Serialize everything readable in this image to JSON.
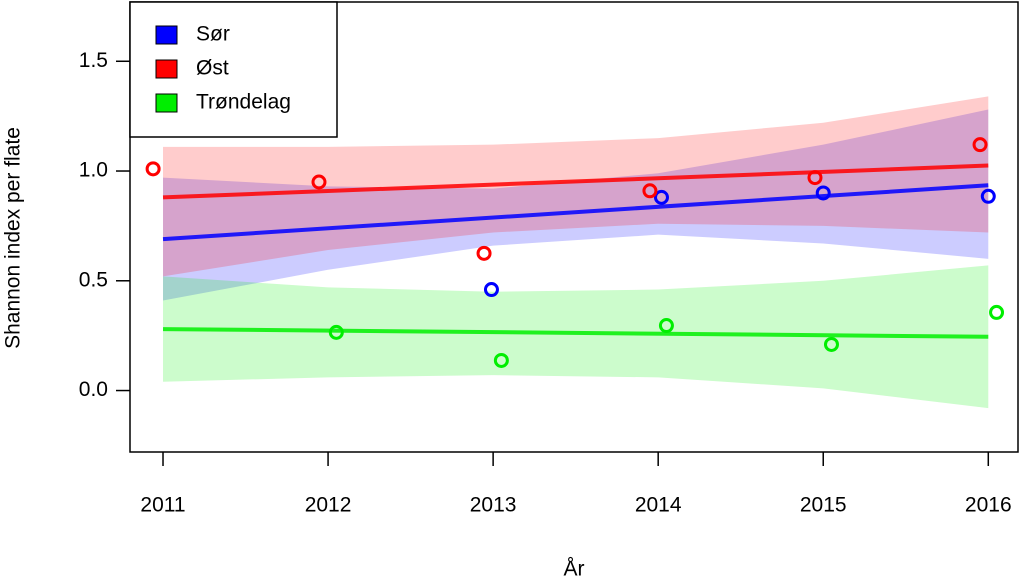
{
  "chart_data": {
    "type": "scatter",
    "x_label": "År",
    "y_label": "Shannon index per flate",
    "xlim": [
      2010.8,
      2016.18
    ],
    "ylim": [
      -0.28,
      1.77
    ],
    "xticks": [
      2011,
      2012,
      2013,
      2014,
      2015,
      2016
    ],
    "yticks": [
      {
        "value": 0,
        "label": "0.0"
      },
      0.5,
      {
        "value": 1,
        "label": "1.0"
      },
      1.5
    ],
    "legend_position": "top-left",
    "series": [
      {
        "name": "Sør",
        "color": "#0000ff",
        "x": [
          2012.99,
          2014.02,
          2015.0,
          2016.0
        ],
        "values": [
          0.46,
          0.88,
          0.9,
          0.885
        ],
        "fit_x": [
          2011,
          2016
        ],
        "fit_values": [
          0.69,
          0.935
        ],
        "band_x": [
          2011,
          2012,
          2013,
          2014,
          2015,
          2016
        ],
        "band_lower": [
          0.41,
          0.55,
          0.66,
          0.71,
          0.67,
          0.6
        ],
        "band_upper": [
          0.97,
          0.93,
          0.92,
          0.99,
          1.12,
          1.28
        ]
      },
      {
        "name": "Øst",
        "color": "#ff0000",
        "x": [
          2010.94,
          2011.945,
          2012.945,
          2013.95,
          2014.95,
          2015.95
        ],
        "values": [
          1.01,
          0.95,
          0.625,
          0.91,
          0.97,
          1.12
        ],
        "fit_x": [
          2011,
          2016
        ],
        "fit_values": [
          0.88,
          1.025
        ],
        "band_x": [
          2011,
          2012,
          2013,
          2014,
          2015,
          2016
        ],
        "band_lower": [
          0.52,
          0.64,
          0.72,
          0.76,
          0.75,
          0.72
        ],
        "band_upper": [
          1.11,
          1.11,
          1.12,
          1.15,
          1.22,
          1.34
        ]
      },
      {
        "name": "Trøndelag",
        "color": "#00ee00",
        "x": [
          2012.05,
          2013.05,
          2014.05,
          2015.05,
          2016.05
        ],
        "values": [
          0.265,
          0.137,
          0.296,
          0.21,
          0.356
        ],
        "fit_x": [
          2011,
          2016
        ],
        "fit_values": [
          0.28,
          0.245
        ],
        "band_x": [
          2011,
          2012,
          2013,
          2014,
          2015,
          2016
        ],
        "band_lower": [
          0.04,
          0.06,
          0.07,
          0.06,
          0.01,
          -0.08
        ],
        "band_upper": [
          0.52,
          0.47,
          0.45,
          0.46,
          0.5,
          0.57
        ]
      }
    ]
  }
}
